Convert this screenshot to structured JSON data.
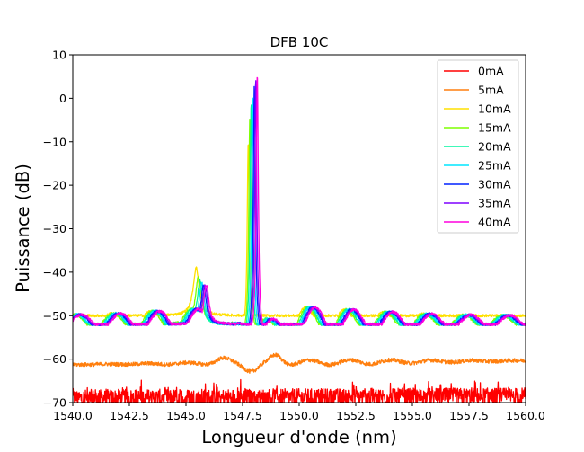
{
  "chart_data": {
    "type": "line",
    "title": "DFB 10C",
    "xlabel": "Longueur d'onde (nm)",
    "ylabel": "Puissance (dB)",
    "xlim": [
      1540.0,
      1560.0
    ],
    "ylim": [
      -70,
      10
    ],
    "xticks": [
      1540.0,
      1542.5,
      1545.0,
      1547.5,
      1550.0,
      1552.5,
      1555.0,
      1557.5,
      1560.0
    ],
    "xtick_labels": [
      "1540.0",
      "1542.5",
      "1545.0",
      "1547.5",
      "1550.0",
      "1552.5",
      "1555.0",
      "1557.5",
      "1560.0"
    ],
    "yticks": [
      10,
      0,
      -10,
      -20,
      -30,
      -40,
      -50,
      -60,
      -70
    ],
    "ytick_labels": [
      "10",
      "0",
      "−10",
      "−20",
      "−30",
      "−40",
      "−50",
      "−60",
      "−70"
    ],
    "grid": false,
    "legend_position": "top-right",
    "series": [
      {
        "name": "0mA",
        "color": "#ff0000",
        "kind": "noise",
        "base": -69.0,
        "amp": 2.0
      },
      {
        "name": "5mA",
        "color": "#ff7f0e",
        "kind": "ase",
        "base": -60.8
      },
      {
        "name": "10mA",
        "color": "#ffe000",
        "kind": "fp",
        "shift": -0.3,
        "peak_x": 1547.75,
        "peak_y": -10,
        "side_x": 1545.45,
        "side_y": -39
      },
      {
        "name": "15mA",
        "color": "#7fff00",
        "kind": "fp",
        "shift": -0.22,
        "peak_x": 1547.82,
        "peak_y": -4,
        "side_x": 1545.55,
        "side_y": -41
      },
      {
        "name": "20mA",
        "color": "#00f5a0",
        "kind": "fp",
        "shift": -0.15,
        "peak_x": 1547.88,
        "peak_y": -1,
        "side_x": 1545.62,
        "side_y": -42
      },
      {
        "name": "25mA",
        "color": "#00e5ff",
        "kind": "fp",
        "shift": -0.08,
        "peak_x": 1547.95,
        "peak_y": 1,
        "side_x": 1545.7,
        "side_y": -42.5
      },
      {
        "name": "30mA",
        "color": "#0022ff",
        "kind": "fp",
        "shift": 0.0,
        "peak_x": 1548.02,
        "peak_y": 3,
        "side_x": 1545.78,
        "side_y": -43
      },
      {
        "name": "35mA",
        "color": "#7f00ff",
        "kind": "fp",
        "shift": 0.06,
        "peak_x": 1548.08,
        "peak_y": 4.5,
        "side_x": 1545.84,
        "side_y": -43
      },
      {
        "name": "40mA",
        "color": "#ff00dd",
        "kind": "fp",
        "shift": 0.12,
        "peak_x": 1548.15,
        "peak_y": 5.5,
        "side_x": 1545.9,
        "side_y": -43
      }
    ]
  }
}
